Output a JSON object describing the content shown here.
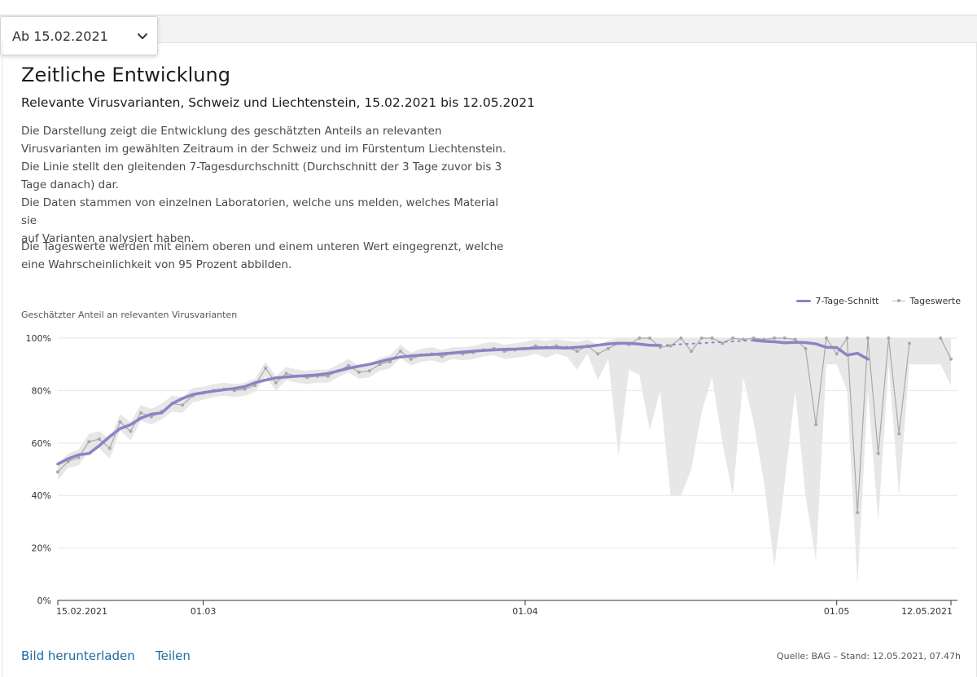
{
  "date_select": {
    "value": "Ab 15.02.2021",
    "icon": "chevron-down-icon"
  },
  "title": "Zeitliche Entwicklung",
  "subtitle": "Relevante Virusvarianten, Schweiz und Liechtenstein, 15.02.2021 bis 12.05.2021",
  "description_lines": [
    "Die Darstellung zeigt die Entwicklung des geschätzten Anteils an relevanten",
    "Virusvarianten im gewählten Zeitraum in der Schweiz und im Fürstentum Liechtenstein.",
    "Die Linie stellt den gleitenden 7-Tagesdurchschnitt (Durchschnitt der 3 Tage zuvor bis 3",
    "Tage danach) dar.",
    "Die Daten stammen von einzelnen Laboratorien, welche uns melden, welches Material sie",
    "auf Varianten analysiert haben."
  ],
  "description2_lines": [
    "Die Tageswerte werden mit einem oberen und einem unteren Wert eingegrenzt, welche",
    "eine Wahrscheinlichkeit von 95 Prozent abbilden."
  ],
  "footer": {
    "download": "Bild herunterladen",
    "share": "Teilen",
    "source": "Quelle: BAG – Stand: 12.05.2021, 07.47h"
  },
  "chart_data": {
    "type": "line",
    "ylabel": "Geschätzter Anteil an relevanten Virusvarianten",
    "ylim": [
      0,
      100
    ],
    "y_ticks": [
      "0%",
      "20%",
      "40%",
      "60%",
      "80%",
      "100%"
    ],
    "y_tick_values": [
      0,
      20,
      40,
      60,
      80,
      100
    ],
    "x_ticks": [
      "15.02.2021",
      "01.03",
      "01.04",
      "01.05",
      "12.05.2021"
    ],
    "x_tick_dates": [
      "2021-02-15",
      "2021-03-01",
      "2021-04-01",
      "2021-05-01",
      "2021-05-12"
    ],
    "x_range": [
      "2021-02-15",
      "2021-05-12"
    ],
    "grid": true,
    "legend": "top-right",
    "colors": {
      "avg": "#8a84c6",
      "daily": "#a9a9a9",
      "band": "#e7e7e7"
    },
    "series": [
      {
        "name": "7-Tage-Schnitt",
        "x": [
          "2021-02-15",
          "2021-02-16",
          "2021-02-17",
          "2021-02-18",
          "2021-02-19",
          "2021-02-20",
          "2021-02-21",
          "2021-02-22",
          "2021-02-23",
          "2021-02-24",
          "2021-02-25",
          "2021-02-26",
          "2021-02-27",
          "2021-02-28",
          "2021-03-01",
          "2021-03-02",
          "2021-03-03",
          "2021-03-04",
          "2021-03-05",
          "2021-03-06",
          "2021-03-07",
          "2021-03-08",
          "2021-03-09",
          "2021-03-10",
          "2021-03-11",
          "2021-03-12",
          "2021-03-13",
          "2021-03-14",
          "2021-03-15",
          "2021-03-16",
          "2021-03-17",
          "2021-03-18",
          "2021-03-19",
          "2021-03-20",
          "2021-03-21",
          "2021-03-22",
          "2021-03-23",
          "2021-03-24",
          "2021-03-25",
          "2021-03-26",
          "2021-03-27",
          "2021-03-28",
          "2021-03-29",
          "2021-03-30",
          "2021-03-31",
          "2021-04-01",
          "2021-04-02",
          "2021-04-03",
          "2021-04-04",
          "2021-04-05",
          "2021-04-06",
          "2021-04-07",
          "2021-04-08",
          "2021-04-09",
          "2021-04-10",
          "2021-04-11",
          "2021-04-12",
          "2021-04-13",
          "2021-04-14",
          "2021-04-15",
          "2021-04-16",
          "2021-04-17",
          "2021-04-18",
          "2021-04-19",
          "2021-04-20",
          "2021-04-21",
          "2021-04-22",
          "2021-04-23",
          "2021-04-24",
          "2021-04-25",
          "2021-04-26",
          "2021-04-27",
          "2021-04-28",
          "2021-04-29",
          "2021-04-30",
          "2021-05-01",
          "2021-05-02",
          "2021-05-03",
          "2021-05-04"
        ],
        "values": [
          52,
          54,
          55.5,
          56,
          59,
          62.5,
          65.5,
          67,
          69.5,
          71,
          71.5,
          75,
          77,
          78.5,
          79.2,
          79.8,
          80.3,
          80.8,
          81.5,
          83,
          84,
          84.8,
          85.2,
          85.5,
          85.7,
          86,
          86.5,
          87.5,
          88.5,
          89.3,
          90,
          91,
          92,
          92.8,
          93.2,
          93.5,
          93.7,
          94,
          94.3,
          94.7,
          95,
          95.3,
          95.5,
          95.7,
          95.8,
          96,
          96.2,
          96.3,
          96.3,
          96.2,
          96.5,
          96.8,
          97.3,
          97.8,
          98,
          98,
          97.7,
          97.3,
          97.2,
          null,
          null,
          null,
          null,
          null,
          null,
          null,
          null,
          99.2,
          98.8,
          98.6,
          98.2,
          98.4,
          98.3,
          97.8,
          96.5,
          96.4,
          93.5,
          94.2,
          92
        ]
      },
      {
        "name": "Tageswerte",
        "x": [
          "2021-02-15",
          "2021-02-16",
          "2021-02-17",
          "2021-02-18",
          "2021-02-19",
          "2021-02-20",
          "2021-02-21",
          "2021-02-22",
          "2021-02-23",
          "2021-02-24",
          "2021-02-25",
          "2021-02-26",
          "2021-02-27",
          "2021-02-28",
          "2021-03-01",
          "2021-03-02",
          "2021-03-03",
          "2021-03-04",
          "2021-03-05",
          "2021-03-06",
          "2021-03-07",
          "2021-03-08",
          "2021-03-09",
          "2021-03-10",
          "2021-03-11",
          "2021-03-12",
          "2021-03-13",
          "2021-03-14",
          "2021-03-15",
          "2021-03-16",
          "2021-03-17",
          "2021-03-18",
          "2021-03-19",
          "2021-03-20",
          "2021-03-21",
          "2021-03-22",
          "2021-03-23",
          "2021-03-24",
          "2021-03-25",
          "2021-03-26",
          "2021-03-27",
          "2021-03-28",
          "2021-03-29",
          "2021-03-30",
          "2021-03-31",
          "2021-04-01",
          "2021-04-02",
          "2021-04-03",
          "2021-04-04",
          "2021-04-05",
          "2021-04-06",
          "2021-04-07",
          "2021-04-08",
          "2021-04-09",
          "2021-04-10",
          "2021-04-11",
          "2021-04-12",
          "2021-04-13",
          "2021-04-14",
          "2021-04-15",
          "2021-04-16",
          "2021-04-17",
          "2021-04-18",
          "2021-04-19",
          "2021-04-20",
          "2021-04-21",
          "2021-04-22",
          "2021-04-23",
          "2021-04-24",
          "2021-04-25",
          "2021-04-26",
          "2021-04-27",
          "2021-04-28",
          "2021-04-29",
          "2021-04-30",
          "2021-05-01",
          "2021-05-02",
          "2021-05-03",
          "2021-05-04",
          "2021-05-05",
          "2021-05-06",
          "2021-05-07",
          "2021-05-08",
          "2021-05-09",
          "2021-05-10",
          "2021-05-11",
          "2021-05-12"
        ],
        "values": [
          49,
          53,
          54.5,
          60.5,
          61.5,
          58,
          68,
          64.5,
          71.5,
          70,
          72,
          75,
          74.5,
          78,
          79,
          80,
          80.5,
          80,
          80.5,
          82,
          88.5,
          83,
          86.5,
          85.5,
          85,
          85.5,
          85.5,
          87.5,
          89.5,
          87,
          87.5,
          90,
          91,
          95,
          92,
          93.5,
          94,
          93,
          94.3,
          94,
          94.5,
          95.5,
          96,
          95,
          95.5,
          96,
          97,
          96.5,
          97,
          96.5,
          95,
          97,
          94,
          96,
          98,
          97.5,
          100,
          100,
          96.5,
          97,
          100,
          95,
          100,
          100,
          98,
          100,
          99.5,
          100,
          99.5,
          100,
          100,
          99.5,
          96,
          67,
          100,
          94,
          100,
          33.5,
          100,
          56,
          100,
          63.5,
          98,
          null,
          null,
          100,
          92
        ],
        "lower": [
          46,
          50.5,
          51.5,
          57,
          58,
          54,
          65,
          61,
          68.5,
          67,
          69,
          72,
          71.5,
          75.5,
          76.5,
          77.5,
          78,
          77.5,
          78,
          79.5,
          85.5,
          80,
          84,
          83,
          82.5,
          83,
          83,
          85,
          87,
          84.5,
          85,
          87.5,
          88.5,
          92.5,
          89.5,
          91,
          91.5,
          90.5,
          92,
          91.5,
          92,
          93,
          93.5,
          92,
          92.5,
          93,
          94,
          92.5,
          94,
          93,
          88,
          94,
          84,
          92,
          55,
          88,
          86,
          65,
          80,
          40,
          40,
          50,
          72,
          85,
          60,
          40,
          85,
          68,
          45,
          13,
          45,
          80,
          40,
          15,
          90,
          90,
          80,
          6,
          80,
          30,
          90,
          40,
          90,
          90,
          90,
          90,
          82
        ],
        "upper": [
          52,
          56,
          57.5,
          63.5,
          64.5,
          61.5,
          71,
          68,
          74.5,
          73,
          75,
          78,
          77.5,
          81,
          81.5,
          82.5,
          83,
          82.5,
          83,
          84.5,
          91,
          85.5,
          89,
          88,
          87.5,
          88,
          88,
          90,
          92,
          89.5,
          90,
          92.5,
          93.5,
          97.5,
          94.5,
          96,
          96.5,
          95.5,
          96.5,
          96.5,
          97,
          98,
          98.5,
          97.5,
          98,
          98.5,
          99.5,
          99,
          99.5,
          99,
          98.5,
          99.5,
          97.5,
          99,
          100,
          100,
          100,
          100,
          100,
          100,
          100,
          100,
          100,
          100,
          100,
          100,
          100,
          100,
          100,
          100,
          100,
          100,
          100,
          100,
          100,
          100,
          100,
          100,
          100,
          100,
          100,
          100,
          100,
          100,
          100,
          100,
          100
        ]
      }
    ]
  }
}
